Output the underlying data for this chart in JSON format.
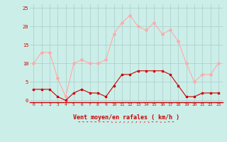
{
  "x": [
    0,
    1,
    2,
    3,
    4,
    5,
    6,
    7,
    8,
    9,
    10,
    11,
    12,
    13,
    14,
    15,
    16,
    17,
    18,
    19,
    20,
    21,
    22,
    23
  ],
  "wind_avg": [
    3,
    3,
    3,
    1,
    0,
    2,
    3,
    2,
    2,
    1,
    4,
    7,
    7,
    8,
    8,
    8,
    8,
    7,
    4,
    1,
    1,
    2,
    2,
    2
  ],
  "wind_gust": [
    10,
    13,
    13,
    6,
    1,
    10,
    11,
    10,
    10,
    11,
    18,
    21,
    23,
    20,
    19,
    21,
    18,
    19,
    16,
    10,
    5,
    7,
    7,
    10
  ],
  "avg_color": "#cc0000",
  "gust_color": "#ffaaaa",
  "bg_color": "#cceee8",
  "grid_color": "#aacccc",
  "xlabel": "Vent moyen/en rafales ( km/h )",
  "xlabel_color": "#cc0000",
  "tick_color": "#cc0000",
  "yticks": [
    0,
    5,
    10,
    15,
    20,
    25
  ],
  "ylim": [
    -0.5,
    26
  ],
  "xlim": [
    -0.5,
    23.5
  ]
}
